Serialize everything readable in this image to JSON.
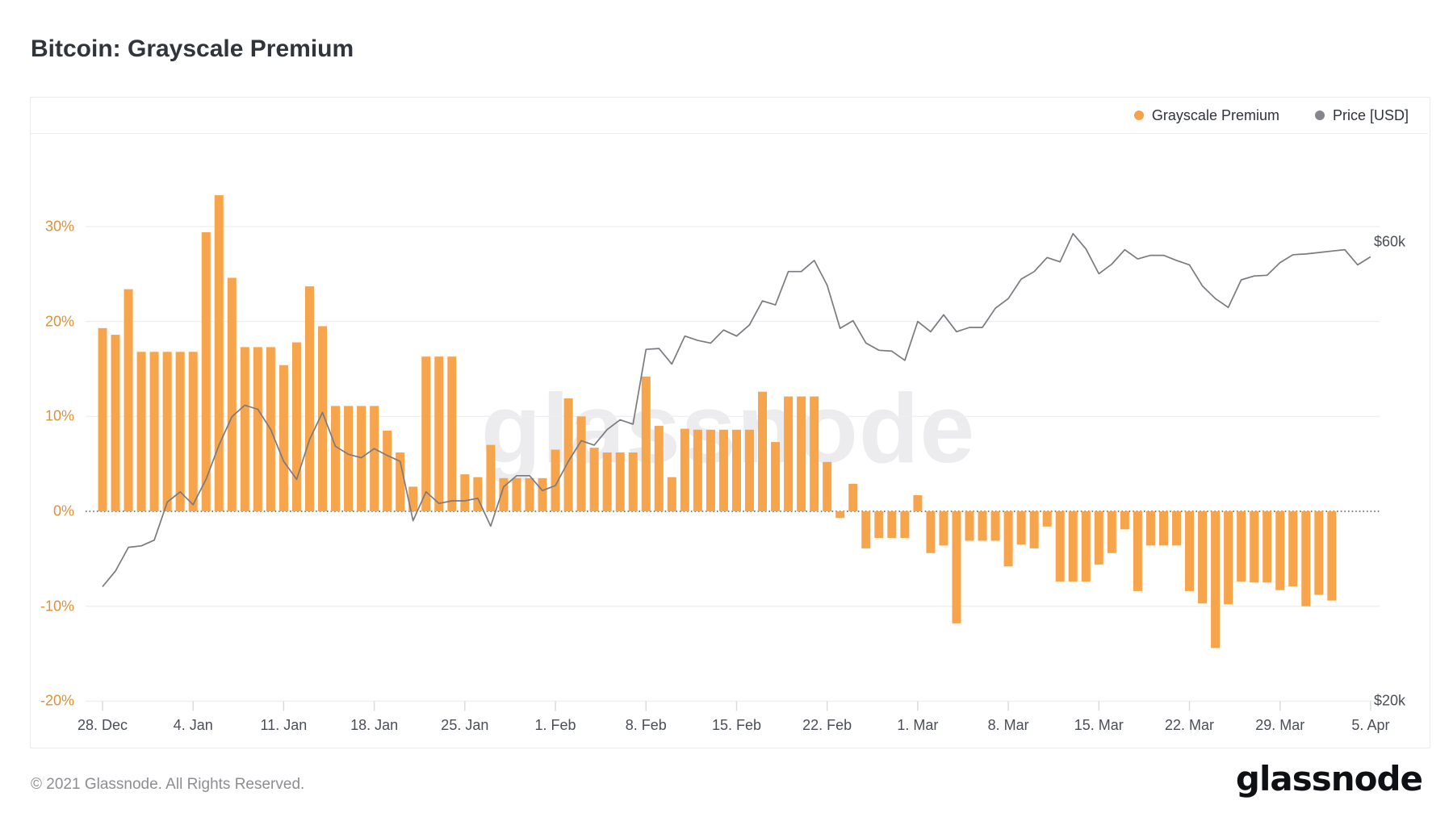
{
  "page": {
    "title": "Bitcoin: Grayscale Premium"
  },
  "legend": {
    "items": [
      {
        "label": "Grayscale Premium",
        "color": "#F2A34C"
      },
      {
        "label": "Price [USD]",
        "color": "#85858D"
      }
    ]
  },
  "watermark": "glassnode",
  "footer": {
    "copyright": "© 2021 Glassnode. All Rights Reserved.",
    "logo": "glassnode"
  },
  "colors": {
    "bar_orange": "#F6A54C",
    "axis_orange": "#DE9238",
    "price_line_gray": "#7A7A80",
    "gridline": "#EFEFF3",
    "zero_line": "#34363B",
    "tick_mark": "#D9D9DE",
    "axis_text": "#4A4E57"
  },
  "chart_data": {
    "type": "bar",
    "title": "Bitcoin: Grayscale Premium",
    "x_start": "28. Dec",
    "x_end": "5. Apr",
    "x_tick_labels": [
      "28. Dec",
      "4. Jan",
      "11. Jan",
      "18. Jan",
      "25. Jan",
      "1. Feb",
      "8. Feb",
      "15. Feb",
      "22. Feb",
      "1. Mar",
      "8. Mar",
      "15. Mar",
      "22. Mar",
      "29. Mar",
      "5. Apr"
    ],
    "x_tick_days": [
      0,
      7,
      14,
      21,
      28,
      35,
      42,
      49,
      56,
      63,
      70,
      77,
      84,
      91,
      98
    ],
    "y_axis_left": {
      "unit": "%",
      "ticks": [
        30,
        20,
        10,
        0,
        -10,
        -20
      ],
      "tick_labels": [
        "30%",
        "20%",
        "10%",
        "0%",
        "-10%",
        "-20%"
      ],
      "zero_line": "dotted"
    },
    "y_axis_right": {
      "scale": "log",
      "ticks": [
        {
          "label": "$60k",
          "value": 60000
        },
        {
          "label": "$20k",
          "value": 20000
        }
      ]
    },
    "grid": "horizontal-only",
    "legend_position": "top-right",
    "series": [
      {
        "name": "Grayscale Premium",
        "type": "bar",
        "unit": "%",
        "start_day": 0,
        "values": [
          19.3,
          18.6,
          23.4,
          16.8,
          16.8,
          16.8,
          16.8,
          16.8,
          29.4,
          33.3,
          24.6,
          17.3,
          17.3,
          17.3,
          15.4,
          17.8,
          23.7,
          19.5,
          11.1,
          11.1,
          11.1,
          11.1,
          8.5,
          6.2,
          2.6,
          16.3,
          16.3,
          16.3,
          3.9,
          3.6,
          7.0,
          3.5,
          3.5,
          3.5,
          3.5,
          6.5,
          11.9,
          10.0,
          6.7,
          6.2,
          6.2,
          6.2,
          14.2,
          9.0,
          3.6,
          8.7,
          8.6,
          8.6,
          8.6,
          8.6,
          8.6,
          12.6,
          7.3,
          12.1,
          12.1,
          12.1,
          5.2,
          -0.7,
          2.9,
          -3.9,
          -2.8,
          -2.8,
          -2.8,
          1.7,
          -4.4,
          -3.6,
          -11.8,
          -3.1,
          -3.1,
          -3.1,
          -5.8,
          -3.5,
          -3.9,
          -1.6,
          -7.4,
          -7.4,
          -7.4,
          -5.6,
          -4.4,
          -1.9,
          -8.4,
          -3.6,
          -3.6,
          -3.6,
          -8.4,
          -9.7,
          -14.4,
          -9.8,
          -7.4,
          -7.5,
          -7.5,
          -8.3,
          -7.9,
          -10.0,
          -8.8,
          -9.4
        ]
      },
      {
        "name": "Price [USD]",
        "type": "line",
        "unit": "USD",
        "start_day": 0,
        "values": [
          26300,
          27300,
          28900,
          29000,
          29400,
          32200,
          33000,
          32000,
          34000,
          36900,
          39500,
          40600,
          40200,
          38300,
          35500,
          34000,
          37400,
          39900,
          36800,
          36100,
          35800,
          36600,
          36000,
          35500,
          30800,
          33000,
          32100,
          32300,
          32300,
          32500,
          30400,
          33400,
          34300,
          34300,
          33100,
          33500,
          35500,
          37300,
          36900,
          38300,
          39200,
          38800,
          46400,
          46500,
          44800,
          47900,
          47400,
          47100,
          48600,
          47900,
          49200,
          52100,
          51600,
          55900,
          55900,
          57400,
          54100,
          48800,
          49700,
          47100,
          46300,
          46200,
          45200,
          49600,
          48400,
          50400,
          48400,
          48900,
          48900,
          51200,
          52400,
          54900,
          55900,
          57800,
          57200,
          61200,
          59000,
          55600,
          56900,
          58900,
          57600,
          58100,
          58100,
          57400,
          56800,
          54000,
          52400,
          51300,
          54800,
          55300,
          55400,
          57100,
          58200,
          58300,
          58500,
          58700,
          58900,
          56800,
          57900
        ]
      }
    ]
  }
}
